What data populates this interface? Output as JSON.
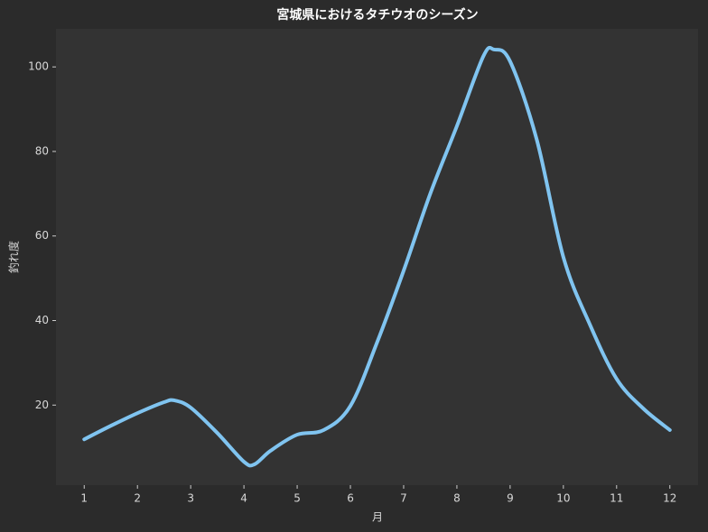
{
  "chart_data": {
    "type": "line",
    "title": "宮城県におけるタチウオのシーズン",
    "x_label": "月",
    "y_label": "釣れ度",
    "x": [
      1,
      1.5,
      2,
      2.5,
      2.7,
      3,
      3.5,
      4,
      4.2,
      4.5,
      5,
      5.5,
      6,
      6.5,
      7,
      7.5,
      8,
      8.5,
      8.7,
      9,
      9.5,
      10,
      10.5,
      11,
      11.5,
      12
    ],
    "series": [
      {
        "color": "#80c4f0",
        "values": [
          11.9,
          15.1,
          18.1,
          20.7,
          21.1,
          19.4,
          13.4,
          6.6,
          6.0,
          9.2,
          13,
          14.1,
          19.8,
          34.8,
          51.8,
          70,
          86,
          102.6,
          104.1,
          101.3,
          82.8,
          55,
          39,
          26.2,
          19.2,
          14.1
        ]
      }
    ],
    "xlim": [
      0.47,
      12.53
    ],
    "ylim": [
      1.07,
      109
    ],
    "xticks": [
      1,
      2,
      3,
      4,
      5,
      6,
      7,
      8,
      9,
      10,
      11,
      12
    ],
    "yticks": [
      20,
      40,
      60,
      80,
      100
    ],
    "grid": false
  }
}
